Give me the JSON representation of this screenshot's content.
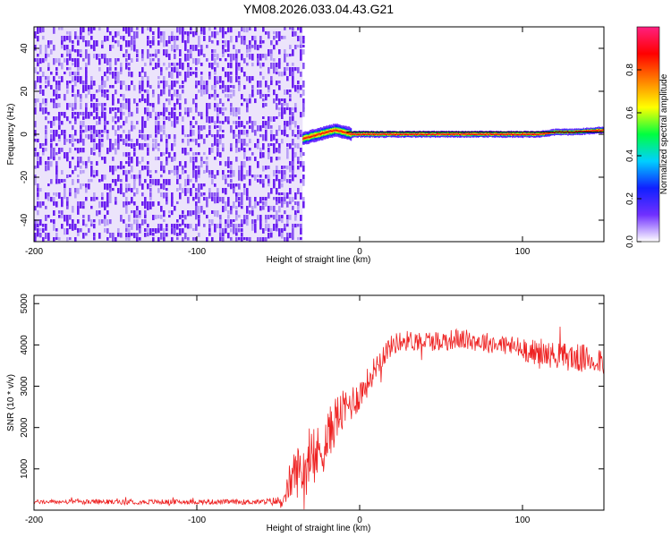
{
  "figure_title": "YM08.2026.033.04.43.G21",
  "chart_data": [
    {
      "type": "heatmap",
      "title": "",
      "xlabel": "Height of straight line (km)",
      "ylabel": "Frequency (Hz)",
      "xlim": [
        -200,
        150
      ],
      "ylim": [
        -50,
        50
      ],
      "xticks": [
        -200,
        -100,
        0,
        100
      ],
      "yticks": [
        -40,
        -20,
        0,
        20,
        40
      ],
      "grid": false,
      "colorbar": {
        "label": "Normalized spectral amplitude",
        "range": [
          0,
          1
        ],
        "ticks": [
          "0.0",
          "0.2",
          "0.4",
          "0.6",
          "0.8"
        ],
        "colors": [
          "#ffffff",
          "#7030ff",
          "#1020ff",
          "#00d0ff",
          "#00ff40",
          "#ffff00",
          "#ff8000",
          "#ff0000",
          "#ff2080"
        ]
      },
      "regions": [
        {
          "x_range": [
            -200,
            -35
          ],
          "y_range": [
            -50,
            50
          ],
          "pattern": "broadband noise",
          "amplitude": [
            0.1,
            0.3
          ]
        },
        {
          "x_range": [
            -35,
            150
          ],
          "y_range": [
            -50,
            50
          ],
          "pattern": "empty",
          "amplitude": [
            0,
            0
          ]
        }
      ],
      "signal_line": {
        "x": [
          -35,
          -25,
          -15,
          -5,
          0,
          10,
          20,
          40,
          60,
          80,
          100,
          110,
          120,
          130,
          150
        ],
        "frequency": [
          -2,
          0,
          2,
          0,
          0,
          0,
          0,
          0,
          0,
          0,
          0,
          0,
          1,
          1,
          2
        ],
        "peak_amplitude": 0.9
      }
    },
    {
      "type": "line",
      "title": "",
      "xlabel": "Height of straight line (km)",
      "ylabel": "SNR (10 * v/v)",
      "xlim": [
        -200,
        150
      ],
      "ylim": [
        0,
        5200
      ],
      "xticks": [
        -200,
        -100,
        0,
        100
      ],
      "yticks": [
        1000,
        2000,
        3000,
        4000,
        5000
      ],
      "grid": false,
      "color": "#ee2222",
      "series": [
        {
          "x": [
            -200,
            -150,
            -100,
            -60,
            -46,
            -44,
            -40,
            -35,
            -30,
            -25,
            -20,
            -15,
            -10,
            -5,
            0,
            5,
            10,
            15,
            20,
            25,
            30,
            40,
            50,
            60,
            70,
            80,
            90,
            100,
            110,
            120,
            130,
            140,
            150
          ],
          "values": [
            200,
            200,
            200,
            200,
            220,
            600,
            900,
            1000,
            1100,
            1400,
            1700,
            2200,
            2400,
            2600,
            2800,
            3100,
            3500,
            3800,
            4000,
            4100,
            4100,
            4100,
            4100,
            4150,
            4100,
            4050,
            4000,
            3900,
            3800,
            3750,
            3700,
            3650,
            3650
          ],
          "noise_amplitude": [
            50,
            60,
            60,
            60,
            150,
            400,
            600,
            700,
            700,
            700,
            650,
            600,
            500,
            450,
            400,
            350,
            300,
            300,
            250,
            250,
            250,
            250,
            250,
            250,
            250,
            250,
            250,
            300,
            300,
            320,
            350,
            350,
            350
          ]
        }
      ]
    }
  ]
}
